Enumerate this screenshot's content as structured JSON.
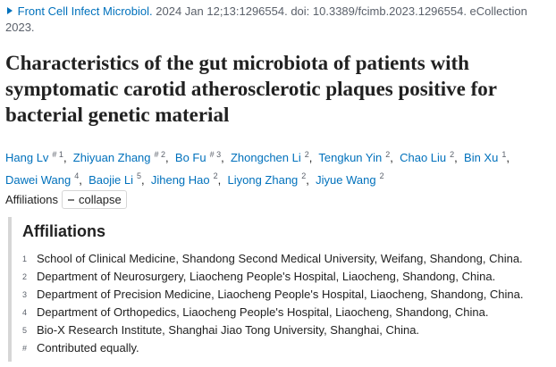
{
  "citation": {
    "journal": "Front Cell Infect Microbiol.",
    "details": "2024 Jan 12;13:1296554. doi: 10.3389/fcimb.2023.1296554. eCollection 2023."
  },
  "title": "Characteristics of the gut microbiota of patients with symptomatic carotid atherosclerotic plaques positive for bacterial genetic material",
  "authors": [
    {
      "name": "Hang Lv",
      "sup": "# 1"
    },
    {
      "name": "Zhiyuan Zhang",
      "sup": "# 2"
    },
    {
      "name": "Bo Fu",
      "sup": "# 3"
    },
    {
      "name": "Zhongchen Li",
      "sup": "2"
    },
    {
      "name": "Tengkun Yin",
      "sup": "2"
    },
    {
      "name": "Chao Liu",
      "sup": "2"
    },
    {
      "name": "Bin Xu",
      "sup": "1"
    },
    {
      "name": "Dawei Wang",
      "sup": "4"
    },
    {
      "name": "Baojie Li",
      "sup": "5"
    },
    {
      "name": "Jiheng Hao",
      "sup": "2"
    },
    {
      "name": "Liyong Zhang",
      "sup": "2"
    },
    {
      "name": "Jiyue Wang",
      "sup": "2"
    }
  ],
  "affiliations_toggle": {
    "label": "Affiliations",
    "button": "collapse"
  },
  "affiliations": {
    "heading": "Affiliations",
    "items": [
      {
        "marker": "1",
        "text": "School of Clinical Medicine, Shandong Second Medical University, Weifang, Shandong, China."
      },
      {
        "marker": "2",
        "text": "Department of Neurosurgery, Liaocheng People's Hospital, Liaocheng, Shandong, China."
      },
      {
        "marker": "3",
        "text": "Department of Precision Medicine, Liaocheng People's Hospital, Liaocheng, Shandong, China."
      },
      {
        "marker": "4",
        "text": "Department of Orthopedics, Liaocheng People's Hospital, Liaocheng, Shandong, China."
      },
      {
        "marker": "5",
        "text": "Bio-X Research Institute, Shanghai Jiao Tong University, Shanghai, China."
      },
      {
        "marker": "#",
        "text": "Contributed equally."
      }
    ]
  }
}
